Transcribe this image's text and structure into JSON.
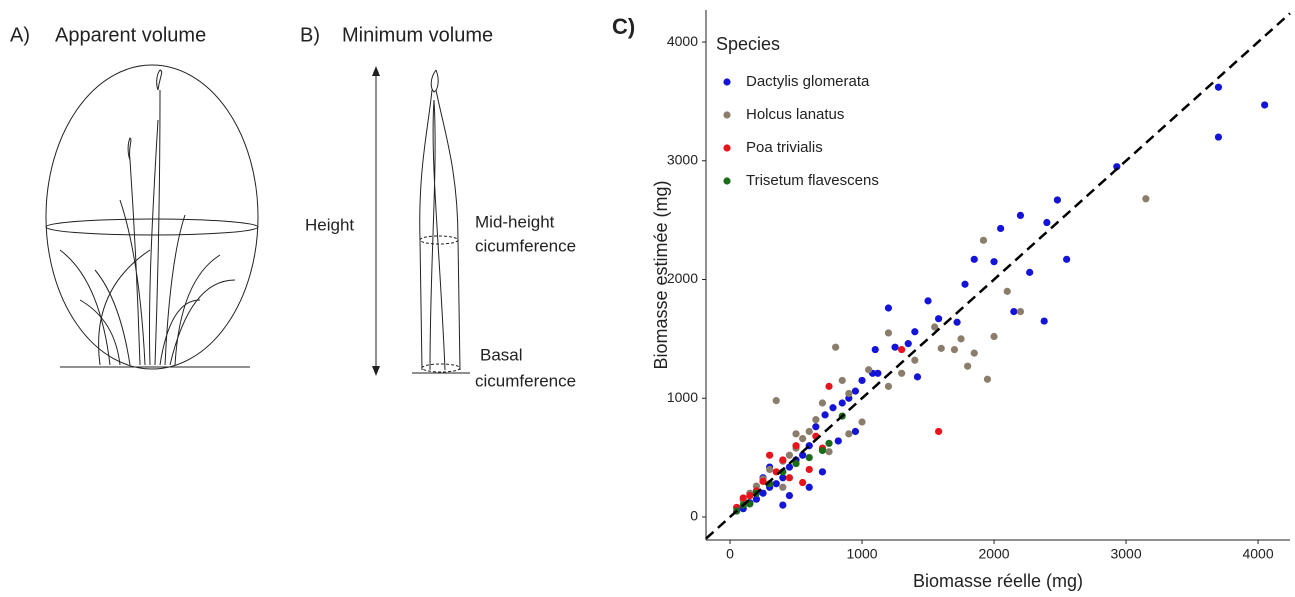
{
  "panel_a": {
    "label": "A)",
    "title": "Apparent volume"
  },
  "panel_b": {
    "label": "B)",
    "title": "Minimum volume",
    "height_label": "Height",
    "mid_label": [
      "Mid-height",
      "cicumference"
    ],
    "basal_label": [
      "Basal",
      "cicumference"
    ]
  },
  "chart_data": {
    "type": "scatter",
    "panel_label": "C)",
    "x_label": "Biomasse réelle (mg)",
    "y_label": "Biomasse estimée (mg)",
    "xlim": [
      -182,
      4242
    ],
    "ylim": [
      -194,
      4270
    ],
    "xticks": [
      0,
      1000,
      2000,
      3000,
      4000
    ],
    "yticks": [
      0,
      1000,
      2000,
      3000,
      4000
    ],
    "identity_line": true,
    "grid": false,
    "legend_title": "Species",
    "legend_position": "top-left",
    "series": [
      {
        "name": "Dactylis glomerata",
        "color": "#1414d8",
        "x": [
          4050,
          3700,
          3700,
          2930,
          2550,
          2480,
          2400,
          2380,
          2200,
          2270,
          2150,
          2050,
          2000,
          1850,
          1780,
          1720,
          1500,
          1580,
          1400,
          1350,
          1250,
          1200,
          1100,
          1080,
          1000,
          950,
          900,
          850,
          780,
          720,
          650,
          600,
          550,
          500,
          450,
          400,
          350,
          300,
          250,
          200,
          150,
          100,
          700,
          600,
          450,
          1420,
          1120,
          950,
          820,
          300,
          250,
          400
        ],
        "y": [
          3470,
          3620,
          3200,
          2950,
          2170,
          2670,
          2480,
          1650,
          2540,
          2060,
          1730,
          2430,
          2150,
          2170,
          1960,
          1640,
          1820,
          1670,
          1560,
          1460,
          1430,
          1760,
          1410,
          1210,
          1150,
          1060,
          1000,
          960,
          920,
          860,
          760,
          600,
          520,
          480,
          420,
          330,
          280,
          250,
          200,
          150,
          120,
          70,
          380,
          250,
          180,
          1180,
          1210,
          720,
          640,
          420,
          330,
          100
        ]
      },
      {
        "name": "Holcus lanatus",
        "color": "#8b7d6b",
        "x": [
          3150,
          2100,
          1920,
          2000,
          1950,
          1800,
          1750,
          1850,
          1700,
          1600,
          1550,
          1400,
          1300,
          1200,
          1050,
          900,
          850,
          800,
          700,
          650,
          600,
          550,
          500,
          450,
          400,
          350,
          300,
          250,
          200,
          150,
          100,
          1000,
          900,
          750,
          500,
          400,
          1200,
          2200
        ],
        "y": [
          2680,
          1900,
          2330,
          1520,
          1160,
          1270,
          1500,
          1380,
          1410,
          1420,
          1600,
          1320,
          1210,
          1100,
          1240,
          1040,
          1150,
          1430,
          960,
          820,
          720,
          660,
          580,
          520,
          470,
          980,
          400,
          320,
          260,
          200,
          140,
          800,
          700,
          550,
          700,
          250,
          1550,
          1730
        ]
      },
      {
        "name": "Poa trivialis",
        "color": "#e8141c",
        "x": [
          1580,
          1300,
          750,
          700,
          600,
          550,
          500,
          400,
          350,
          300,
          250,
          200,
          150,
          100,
          50,
          450,
          650
        ],
        "y": [
          720,
          1410,
          1100,
          580,
          400,
          290,
          600,
          480,
          380,
          520,
          300,
          220,
          180,
          160,
          80,
          330,
          680
        ]
      },
      {
        "name": "Trisetum flavescens",
        "color": "#1a6b1a",
        "x": [
          850,
          700,
          600,
          500,
          400,
          300,
          200,
          100,
          50,
          150,
          750
        ],
        "y": [
          850,
          560,
          500,
          450,
          380,
          280,
          200,
          100,
          50,
          110,
          620
        ]
      }
    ]
  }
}
